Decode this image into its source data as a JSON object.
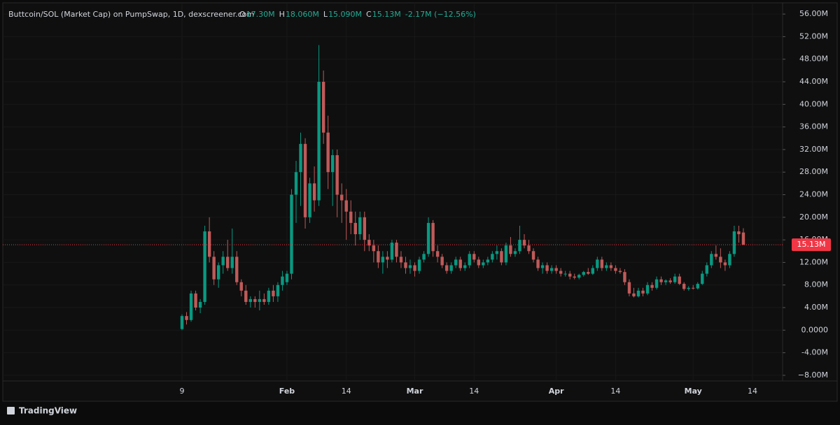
{
  "chart_data": {
    "type": "candlestick",
    "title": "Buttcoin/SOL (Market Cap) on PumpSwap, 1D, dexscreener.com",
    "ohlc_header": [
      {
        "label": "O",
        "value": "17.30M"
      },
      {
        "label": "H",
        "value": "18.060M"
      },
      {
        "label": "L",
        "value": "15.090M"
      },
      {
        "label": "C",
        "value": "15.13M"
      }
    ],
    "change": "-2.17M (−12.56%)",
    "watermark": "TradingView",
    "up_color": "#089981",
    "down_color": "#c05a5a",
    "x": [
      "Jan 9",
      "Jan 10",
      "Jan 11",
      "Jan 12",
      "Jan 13",
      "Jan 14",
      "Jan 15",
      "Jan 16",
      "Jan 17",
      "Jan 18",
      "Jan 19",
      "Jan 20",
      "Jan 21",
      "Jan 22",
      "Jan 23",
      "Jan 24",
      "Jan 25",
      "Jan 26",
      "Jan 27",
      "Jan 28",
      "Jan 29",
      "Jan 30",
      "Jan 31",
      "Feb 1",
      "Feb 2",
      "Feb 3",
      "Feb 4",
      "Feb 5",
      "Feb 6",
      "Feb 7",
      "Feb 8",
      "Feb 9",
      "Feb 10",
      "Feb 11",
      "Feb 12",
      "Feb 13",
      "Feb 14",
      "Feb 15",
      "Feb 16",
      "Feb 17",
      "Feb 18",
      "Feb 19",
      "Feb 20",
      "Feb 21",
      "Feb 22",
      "Feb 23",
      "Feb 24",
      "Feb 25",
      "Feb 26",
      "Feb 27",
      "Feb 28",
      "Mar 1",
      "Mar 2",
      "Mar 3",
      "Mar 4",
      "Mar 5",
      "Mar 6",
      "Mar 7",
      "Mar 8",
      "Mar 9",
      "Mar 10",
      "Mar 11",
      "Mar 12",
      "Mar 13",
      "Mar 14",
      "Mar 15",
      "Mar 16",
      "Mar 17",
      "Mar 18",
      "Mar 19",
      "Mar 20",
      "Mar 21",
      "Mar 22",
      "Mar 23",
      "Mar 24",
      "Mar 25",
      "Mar 26",
      "Mar 27",
      "Mar 28",
      "Mar 29",
      "Mar 30",
      "Mar 31",
      "Apr 1",
      "Apr 2",
      "Apr 3",
      "Apr 4",
      "Apr 5",
      "Apr 6",
      "Apr 7",
      "Apr 8",
      "Apr 9",
      "Apr 10",
      "Apr 11",
      "Apr 12",
      "Apr 13",
      "Apr 14",
      "Apr 15",
      "Apr 16",
      "Apr 17",
      "Apr 18",
      "Apr 19",
      "Apr 20",
      "Apr 21",
      "Apr 22",
      "Apr 23",
      "Apr 24",
      "Apr 25",
      "Apr 26",
      "Apr 27",
      "Apr 28",
      "Apr 29",
      "Apr 30",
      "May 1",
      "May 2",
      "May 3",
      "May 4",
      "May 5",
      "May 6",
      "May 7",
      "May 8",
      "May 9",
      "May 10",
      "May 11",
      "May 12"
    ],
    "open": [
      0.2,
      2.5,
      1.8,
      6.5,
      4.0,
      5.0,
      17.5,
      13,
      9,
      11.5,
      13,
      11,
      13,
      8.5,
      7,
      5,
      5.5,
      5,
      5.5,
      5,
      7,
      6,
      8,
      8.5,
      10,
      24,
      28,
      33,
      20,
      26,
      23,
      44,
      35,
      28,
      31,
      24,
      23,
      21,
      19,
      17,
      20,
      16,
      15,
      14,
      12,
      13,
      12.5,
      15.5,
      13,
      12,
      11,
      11.5,
      10.5,
      12.5,
      13.5,
      19,
      14,
      13,
      11.5,
      10.5,
      11.5,
      12.5,
      11,
      11.5,
      13.5,
      12.5,
      11.5,
      12,
      12.5,
      13.5,
      14,
      12,
      15,
      13.5,
      14,
      16,
      15,
      14,
      12.5,
      11,
      11.5,
      10.5,
      11,
      10.5,
      10,
      10,
      9.5,
      9.3,
      9.8,
      10.3,
      10,
      11,
      12.5,
      11,
      11.5,
      11,
      10.5,
      10.3,
      8.5,
      6.5,
      6,
      7,
      6.5,
      8,
      7.5,
      9,
      8.5,
      8.8,
      8.5,
      9.5,
      8.2,
      7.3,
      7.5,
      7.4,
      8.2,
      10,
      11.5,
      13.5,
      13,
      12,
      11.5,
      13.5,
      17.5,
      17.3
    ],
    "high": [
      2.8,
      3.2,
      7.0,
      7.0,
      5.5,
      18.5,
      20,
      14,
      12,
      14,
      16,
      18,
      14,
      9,
      8,
      6,
      6,
      7,
      6.5,
      7.5,
      8,
      8.5,
      10.5,
      10.5,
      25,
      30,
      35,
      34,
      27,
      29,
      50.5,
      46,
      38,
      32,
      32,
      26,
      25,
      23,
      21,
      21,
      21,
      17,
      16,
      15,
      14,
      14,
      16,
      16,
      14,
      13,
      12.5,
      12,
      13,
      14,
      20,
      19.5,
      15,
      13.5,
      12,
      12,
      13,
      13,
      12,
      14,
      14,
      13,
      12.5,
      13,
      14,
      15,
      14.5,
      15.5,
      16.5,
      14.5,
      18.5,
      17,
      16,
      14.5,
      13,
      12,
      12,
      11.5,
      11.5,
      11,
      10.5,
      10.5,
      10,
      10,
      10.5,
      11,
      11.5,
      13,
      13,
      12,
      12,
      11.5,
      11,
      10.8,
      9,
      7.5,
      7.5,
      7.5,
      8.5,
      8.5,
      9.5,
      9.5,
      9,
      9.2,
      10,
      10,
      8.5,
      7.8,
      8,
      8.5,
      10.5,
      12,
      14,
      15,
      14.5,
      12.5,
      14,
      18.5,
      18.5,
      18.06
    ],
    "low": [
      0,
      1.0,
      1.5,
      3.5,
      3.0,
      4.5,
      12,
      8,
      7.5,
      10,
      10.5,
      10,
      8,
      6,
      4.5,
      4,
      4,
      3.5,
      4.5,
      4.5,
      5,
      5,
      7,
      8,
      9,
      19,
      22,
      18,
      19,
      21,
      22,
      33,
      25,
      22,
      20,
      19,
      16,
      17,
      15,
      16,
      14,
      14,
      12,
      11,
      10,
      11,
      12,
      12,
      11,
      10,
      10,
      9.5,
      10,
      12,
      13,
      13,
      12,
      11,
      10,
      10,
      11,
      10.5,
      10.5,
      11,
      12,
      11,
      11,
      11.5,
      12,
      12.5,
      11.5,
      11.5,
      13,
      13,
      13.5,
      14.5,
      13.5,
      12,
      10.5,
      10,
      10,
      10,
      10,
      9.5,
      9.5,
      9,
      9,
      9,
      9.5,
      9.8,
      9.8,
      10.5,
      10.5,
      10.5,
      10.5,
      10,
      10,
      8,
      6,
      5.8,
      5.8,
      6,
      6.2,
      7,
      7.2,
      8,
      8,
      8.2,
      8.2,
      8,
      7,
      7,
      7.2,
      7.2,
      8,
      9.5,
      11,
      12.5,
      11,
      10.5,
      11,
      13,
      15.5,
      15.09
    ],
    "close": [
      2.5,
      1.8,
      6.5,
      4.0,
      5.0,
      17.5,
      13,
      9,
      11.5,
      13,
      11,
      13,
      8.5,
      7,
      5,
      5.5,
      5,
      5.5,
      5,
      7,
      6,
      8,
      9.5,
      10,
      24,
      28,
      33,
      20,
      26,
      23,
      44,
      35,
      28,
      31,
      24,
      23,
      21,
      19,
      17,
      20,
      16,
      15,
      14,
      12,
      13,
      12.5,
      15.5,
      13,
      12,
      11,
      11.5,
      10.5,
      12.5,
      13.5,
      19,
      14,
      13,
      11.5,
      10.5,
      11.5,
      12.5,
      11,
      11.5,
      13.5,
      12.5,
      11.5,
      12,
      12.5,
      13.5,
      14,
      12,
      15,
      13.5,
      14,
      16,
      15,
      14,
      12.5,
      11,
      11.5,
      10.5,
      11,
      10.5,
      10,
      10,
      9.5,
      9.3,
      9.8,
      10.3,
      10,
      11,
      12.5,
      11,
      11.5,
      11,
      10.5,
      10.3,
      8.5,
      6.5,
      6,
      7,
      6.5,
      8,
      7.5,
      9,
      8.5,
      8.8,
      8.5,
      9.5,
      8.2,
      7.3,
      7.5,
      7.4,
      8.2,
      10,
      11.5,
      13.5,
      13,
      12,
      11.5,
      13.5,
      17.5,
      17,
      15.13
    ],
    "last_price": {
      "value": 15.13,
      "label": "15.13M"
    },
    "ylim": [
      -9.0,
      57.5
    ],
    "yticks": [
      {
        "value": -8,
        "label": "−8.00M"
      },
      {
        "value": -4,
        "label": "-4.00M"
      },
      {
        "value": 0,
        "label": "0.0000"
      },
      {
        "value": 4,
        "label": "4.00M"
      },
      {
        "value": 8,
        "label": "8.00M"
      },
      {
        "value": 12,
        "label": "12.00M"
      },
      {
        "value": 16,
        "label": "16.00M"
      },
      {
        "value": 20,
        "label": "20.00M"
      },
      {
        "value": 24,
        "label": "24.00M"
      },
      {
        "value": 28,
        "label": "28.00M"
      },
      {
        "value": 32,
        "label": "32.00M"
      },
      {
        "value": 36,
        "label": "36.00M"
      },
      {
        "value": 40,
        "label": "40.00M"
      },
      {
        "value": 44,
        "label": "44.00M"
      },
      {
        "value": 48,
        "label": "48.00M"
      },
      {
        "value": 52,
        "label": "52.00M"
      },
      {
        "value": 56,
        "label": "56.00M"
      }
    ],
    "xticks": [
      {
        "value": "Jan 9",
        "label": "9"
      },
      {
        "value": "Feb 1",
        "label": "Feb"
      },
      {
        "value": "Feb 14",
        "label": "14"
      },
      {
        "value": "Mar 1",
        "label": "Mar"
      },
      {
        "value": "Mar 14",
        "label": "14"
      },
      {
        "value": "Apr 1",
        "label": "Apr"
      },
      {
        "value": "Apr 14",
        "label": "14"
      },
      {
        "value": "May 1",
        "label": "May"
      },
      {
        "value": "May 14",
        "label": "14"
      }
    ],
    "grid": true
  }
}
